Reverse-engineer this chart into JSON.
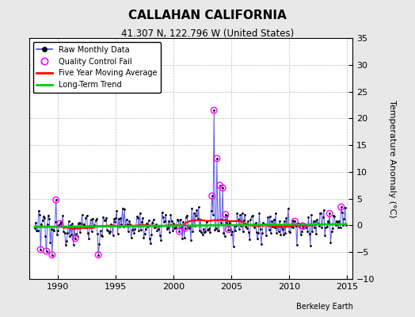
{
  "title": "CALLAHAN CALIFORNIA",
  "subtitle": "41.307 N, 122.796 W (United States)",
  "ylabel": "Temperature Anomaly (°C)",
  "credit": "Berkeley Earth",
  "xlim": [
    1987.5,
    2015.5
  ],
  "ylim": [
    -10,
    35
  ],
  "yticks": [
    -10,
    -5,
    0,
    5,
    10,
    15,
    20,
    25,
    30,
    35
  ],
  "xticks": [
    1990,
    1995,
    2000,
    2005,
    2010,
    2015
  ],
  "bg_color": "#e8e8e8",
  "plot_bg_color": "#ffffff",
  "grid_color": "#bbbbbb",
  "line_color": "#4444ff",
  "ma_color": "#ff0000",
  "trend_color": "#00cc00",
  "qc_color": "#ff00ff",
  "seed": 12345
}
